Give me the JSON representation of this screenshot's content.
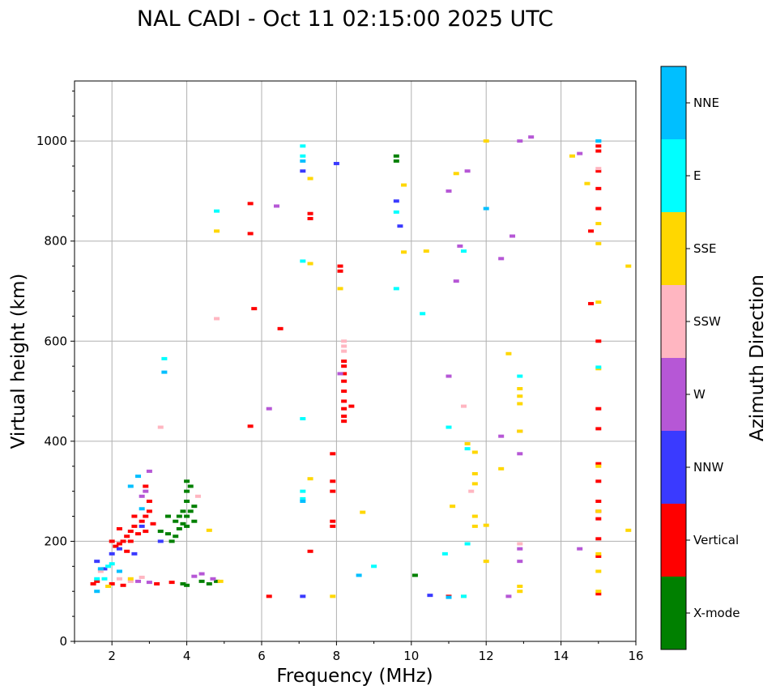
{
  "chart_data": {
    "type": "scatter",
    "title": "NAL CADI - Oct 11 02:15:00 2025 UTC",
    "xlabel": "Frequency (MHz)",
    "ylabel": "Virtual height (km)",
    "xlim": [
      1,
      16
    ],
    "ylim": [
      0,
      1120
    ],
    "xticks": [
      2,
      4,
      6,
      8,
      10,
      12,
      14,
      16
    ],
    "yticks": [
      0,
      200,
      400,
      600,
      800,
      1000
    ],
    "grid": true,
    "colorbar": {
      "label": "Azimuth Direction",
      "categories": [
        {
          "name": "X-mode",
          "color": "#008000"
        },
        {
          "name": "Vertical",
          "color": "#ff0000"
        },
        {
          "name": "NNW",
          "color": "#3a3aff"
        },
        {
          "name": "W",
          "color": "#b657d6"
        },
        {
          "name": "SSW",
          "color": "#ffb6c1"
        },
        {
          "name": "SSE",
          "color": "#ffd700"
        },
        {
          "name": "E",
          "color": "#00ffff"
        },
        {
          "name": "NNE",
          "color": "#00bfff"
        }
      ]
    },
    "series": [
      {
        "name": "X-mode",
        "points": [
          [
            3.6,
            200
          ],
          [
            3.7,
            210
          ],
          [
            3.8,
            225
          ],
          [
            3.9,
            235
          ],
          [
            4.0,
            250
          ],
          [
            4.1,
            260
          ],
          [
            4.2,
            270
          ],
          [
            3.5,
            215
          ],
          [
            3.7,
            240
          ],
          [
            3.9,
            260
          ],
          [
            4.0,
            280
          ],
          [
            4.0,
            300
          ],
          [
            4.1,
            310
          ],
          [
            4.0,
            320
          ],
          [
            3.3,
            220
          ],
          [
            3.5,
            250
          ],
          [
            3.8,
            250
          ],
          [
            4.0,
            230
          ],
          [
            4.2,
            240
          ],
          [
            4.4,
            120
          ],
          [
            4.6,
            115
          ],
          [
            4.8,
            120
          ],
          [
            4.0,
            112
          ],
          [
            3.9,
            115
          ],
          [
            9.6,
            960
          ],
          [
            9.6,
            970
          ],
          [
            10.1,
            132
          ]
        ]
      },
      {
        "name": "Vertical",
        "points": [
          [
            2.0,
            200
          ],
          [
            2.1,
            190
          ],
          [
            2.2,
            195
          ],
          [
            2.3,
            200
          ],
          [
            2.4,
            210
          ],
          [
            2.5,
            220
          ],
          [
            2.6,
            230
          ],
          [
            2.8,
            240
          ],
          [
            2.9,
            250
          ],
          [
            3.0,
            260
          ],
          [
            2.4,
            180
          ],
          [
            2.7,
            215
          ],
          [
            2.2,
            225
          ],
          [
            2.5,
            200
          ],
          [
            2.6,
            250
          ],
          [
            2.9,
            220
          ],
          [
            3.1,
            235
          ],
          [
            3.0,
            280
          ],
          [
            2.9,
            310
          ],
          [
            3.2,
            115
          ],
          [
            3.6,
            118
          ],
          [
            2.0,
            115
          ],
          [
            1.5,
            115
          ],
          [
            1.6,
            120
          ],
          [
            2.3,
            112
          ],
          [
            8.2,
            440
          ],
          [
            8.2,
            450
          ],
          [
            8.2,
            465
          ],
          [
            8.2,
            480
          ],
          [
            8.2,
            500
          ],
          [
            8.2,
            520
          ],
          [
            8.2,
            535
          ],
          [
            8.2,
            550
          ],
          [
            8.2,
            560
          ],
          [
            8.4,
            470
          ],
          [
            8.1,
            750
          ],
          [
            8.1,
            740
          ],
          [
            7.9,
            375
          ],
          [
            7.9,
            320
          ],
          [
            7.9,
            300
          ],
          [
            7.9,
            240
          ],
          [
            7.9,
            230
          ],
          [
            7.3,
            180
          ],
          [
            7.3,
            845
          ],
          [
            7.3,
            855
          ],
          [
            5.7,
            875
          ],
          [
            5.7,
            815
          ],
          [
            5.8,
            665
          ],
          [
            6.5,
            625
          ],
          [
            5.7,
            430
          ],
          [
            6.2,
            90
          ],
          [
            15.0,
            95
          ],
          [
            15.0,
            170
          ],
          [
            15.0,
            205
          ],
          [
            15.0,
            245
          ],
          [
            15.0,
            260
          ],
          [
            15.0,
            280
          ],
          [
            15.0,
            320
          ],
          [
            15.0,
            355
          ],
          [
            15.0,
            425
          ],
          [
            15.0,
            465
          ],
          [
            15.0,
            600
          ],
          [
            14.8,
            675
          ],
          [
            14.8,
            820
          ],
          [
            15.0,
            865
          ],
          [
            15.0,
            905
          ],
          [
            15.0,
            940
          ],
          [
            15.0,
            980
          ],
          [
            15.0,
            990
          ],
          [
            11.0,
            90
          ]
        ]
      },
      {
        "name": "NNW",
        "points": [
          [
            1.6,
            160
          ],
          [
            1.8,
            145
          ],
          [
            2.0,
            175
          ],
          [
            2.2,
            185
          ],
          [
            2.6,
            175
          ],
          [
            3.3,
            200
          ],
          [
            2.8,
            230
          ],
          [
            8.0,
            955
          ],
          [
            7.1,
            940
          ],
          [
            9.7,
            830
          ],
          [
            9.6,
            880
          ],
          [
            10.5,
            92
          ],
          [
            7.1,
            90
          ]
        ]
      },
      {
        "name": "W",
        "points": [
          [
            2.7,
            120
          ],
          [
            3.0,
            118
          ],
          [
            4.2,
            130
          ],
          [
            4.4,
            135
          ],
          [
            4.7,
            125
          ],
          [
            3.0,
            340
          ],
          [
            2.9,
            300
          ],
          [
            2.8,
            290
          ],
          [
            6.2,
            465
          ],
          [
            6.4,
            870
          ],
          [
            8.1,
            535
          ],
          [
            11.0,
            530
          ],
          [
            11.2,
            720
          ],
          [
            11.3,
            790
          ],
          [
            11.5,
            940
          ],
          [
            11.0,
            900
          ],
          [
            12.4,
            410
          ],
          [
            12.4,
            765
          ],
          [
            12.6,
            90
          ],
          [
            12.9,
            160
          ],
          [
            12.9,
            185
          ],
          [
            12.9,
            375
          ],
          [
            12.9,
            420
          ],
          [
            12.9,
            1000
          ],
          [
            14.5,
            185
          ],
          [
            14.5,
            975
          ],
          [
            12.7,
            810
          ],
          [
            13.2,
            1008
          ]
        ]
      },
      {
        "name": "SSW",
        "points": [
          [
            1.7,
            140
          ],
          [
            2.2,
            125
          ],
          [
            2.5,
            120
          ],
          [
            2.8,
            128
          ],
          [
            3.3,
            428
          ],
          [
            4.3,
            290
          ],
          [
            4.8,
            645
          ],
          [
            11.4,
            470
          ],
          [
            11.6,
            300
          ],
          [
            12.9,
            195
          ],
          [
            8.2,
            580
          ],
          [
            8.2,
            600
          ],
          [
            8.2,
            590
          ],
          [
            15.0,
            945
          ]
        ]
      },
      {
        "name": "SSE",
        "points": [
          [
            1.9,
            110
          ],
          [
            2.5,
            125
          ],
          [
            4.6,
            222
          ],
          [
            4.9,
            120
          ],
          [
            4.8,
            820
          ],
          [
            7.3,
            925
          ],
          [
            7.3,
            755
          ],
          [
            7.3,
            325
          ],
          [
            7.9,
            90
          ],
          [
            8.1,
            705
          ],
          [
            8.7,
            258
          ],
          [
            9.8,
            912
          ],
          [
            9.8,
            778
          ],
          [
            10.4,
            780
          ],
          [
            11.2,
            935
          ],
          [
            11.1,
            270
          ],
          [
            11.5,
            395
          ],
          [
            11.7,
            378
          ],
          [
            11.7,
            335
          ],
          [
            11.7,
            315
          ],
          [
            11.7,
            250
          ],
          [
            11.7,
            230
          ],
          [
            12.0,
            160
          ],
          [
            12.0,
            232
          ],
          [
            12.0,
            1000
          ],
          [
            11.4,
            90
          ],
          [
            12.4,
            345
          ],
          [
            12.6,
            575
          ],
          [
            12.9,
            420
          ],
          [
            12.9,
            475
          ],
          [
            12.9,
            490
          ],
          [
            12.9,
            505
          ],
          [
            12.9,
            100
          ],
          [
            12.9,
            110
          ],
          [
            14.3,
            970
          ],
          [
            14.7,
            915
          ],
          [
            15.0,
            795
          ],
          [
            15.0,
            835
          ],
          [
            15.0,
            678
          ],
          [
            15.0,
            545
          ],
          [
            15.0,
            350
          ],
          [
            15.0,
            260
          ],
          [
            15.0,
            175
          ],
          [
            15.0,
            140
          ],
          [
            15.0,
            100
          ],
          [
            15.8,
            750
          ],
          [
            15.8,
            222
          ]
        ]
      },
      {
        "name": "E",
        "points": [
          [
            1.6,
            125
          ],
          [
            1.9,
            150
          ],
          [
            2.0,
            155
          ],
          [
            1.8,
            125
          ],
          [
            3.4,
            565
          ],
          [
            4.8,
            860
          ],
          [
            7.1,
            970
          ],
          [
            7.1,
            990
          ],
          [
            7.1,
            760
          ],
          [
            7.1,
            445
          ],
          [
            7.1,
            300
          ],
          [
            7.1,
            285
          ],
          [
            9.6,
            858
          ],
          [
            9.6,
            705
          ],
          [
            10.3,
            655
          ],
          [
            10.9,
            175
          ],
          [
            11.0,
            428
          ],
          [
            11.5,
            195
          ],
          [
            11.5,
            385
          ],
          [
            12.9,
            530
          ],
          [
            15.0,
            1000
          ],
          [
            15.0,
            548
          ],
          [
            11.4,
            780
          ],
          [
            9.0,
            150
          ],
          [
            11.4,
            90
          ]
        ]
      },
      {
        "name": "NNE",
        "points": [
          [
            2.5,
            310
          ],
          [
            2.8,
            265
          ],
          [
            2.7,
            330
          ],
          [
            1.7,
            145
          ],
          [
            1.6,
            100
          ],
          [
            2.2,
            140
          ],
          [
            3.4,
            538
          ],
          [
            7.1,
            960
          ],
          [
            7.1,
            280
          ],
          [
            8.6,
            132
          ],
          [
            11.0,
            88
          ],
          [
            12.0,
            865
          ],
          [
            15.0,
            1000
          ]
        ]
      }
    ]
  }
}
